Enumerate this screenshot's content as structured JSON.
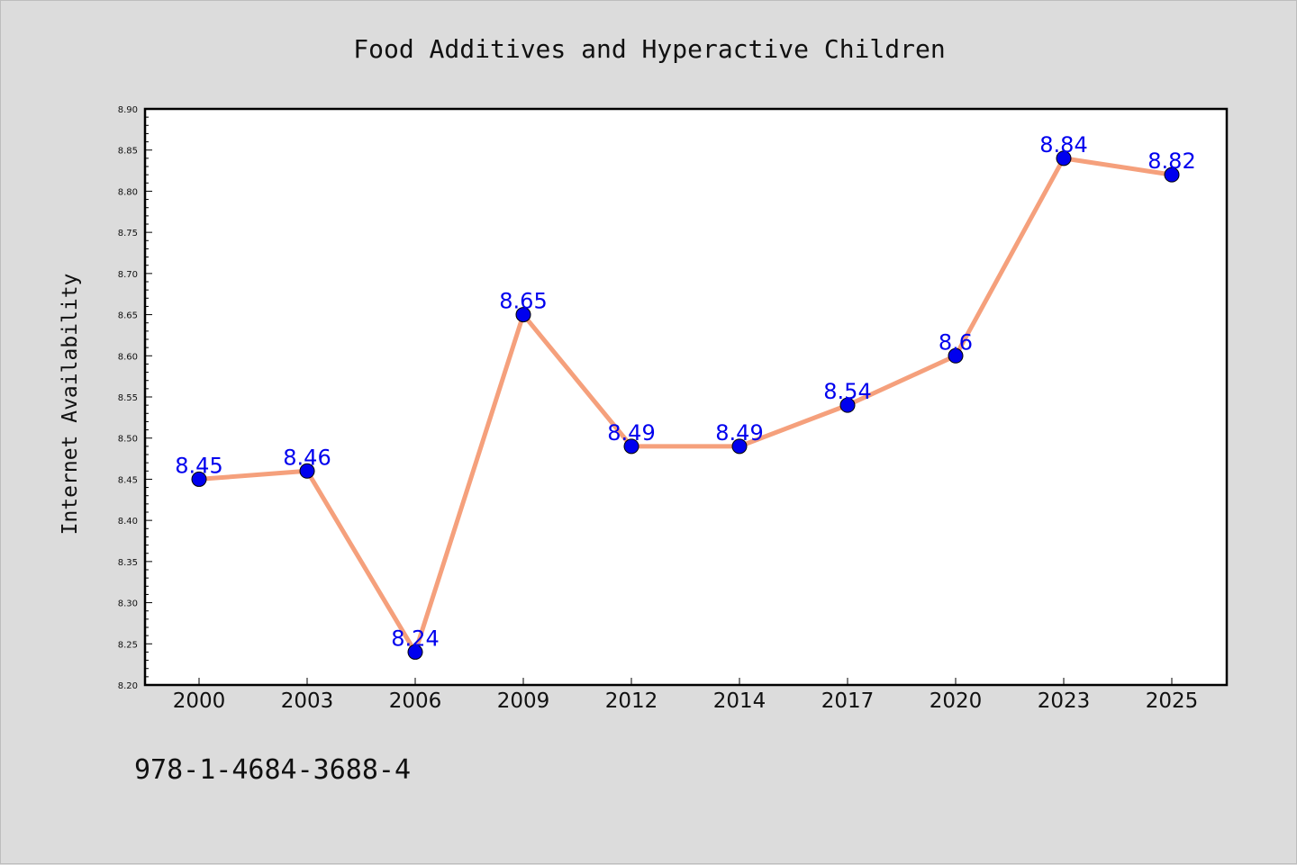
{
  "colors": {
    "background": "#dcdcdc",
    "plot_background": "#ffffff",
    "line": "#f5a07c",
    "marker": "#0000ee",
    "data_label": "#0000ee"
  },
  "isbn": "978-1-4684-3688-4",
  "chart_data": {
    "type": "line",
    "title": "Food Additives and Hyperactive Children",
    "xlabel": "",
    "ylabel": "Internet Availability",
    "categories": [
      "2000",
      "2003",
      "2006",
      "2009",
      "2012",
      "2014",
      "2017",
      "2020",
      "2023",
      "2025"
    ],
    "series": [
      {
        "values": [
          8.45,
          8.46,
          8.24,
          8.65,
          8.49,
          8.49,
          8.54,
          8.6,
          8.84,
          8.82
        ],
        "labels": [
          "8.45",
          "8.46",
          "8.24",
          "8.65",
          "8.49",
          "8.49",
          "8.54",
          "8.6",
          "8.84",
          "8.82"
        ]
      }
    ],
    "ylim": [
      8.2,
      8.9
    ],
    "yticks": [
      "8.20",
      "8.25",
      "8.30",
      "8.35",
      "8.40",
      "8.45",
      "8.50",
      "8.55",
      "8.60",
      "8.65",
      "8.70",
      "8.75",
      "8.80",
      "8.85",
      "8.90"
    ],
    "grid": false,
    "legend": "none"
  }
}
